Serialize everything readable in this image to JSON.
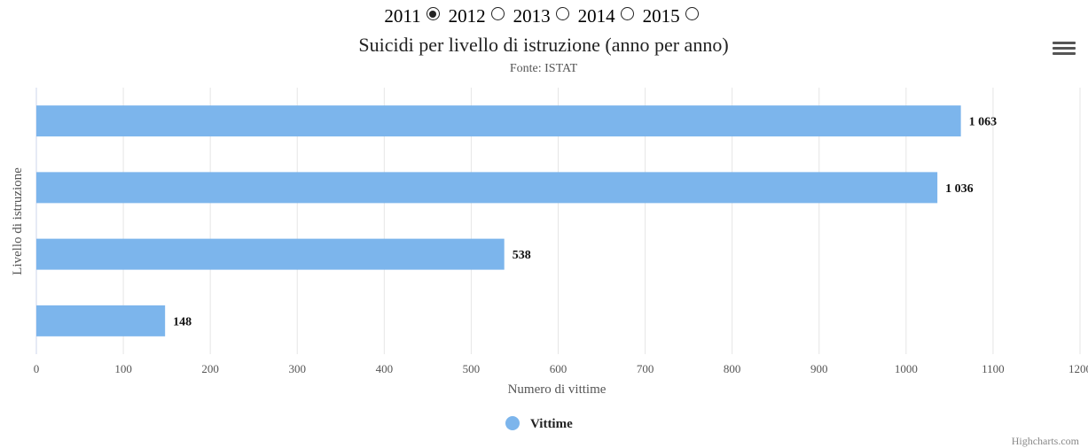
{
  "year_selector": [
    {
      "label": "2011",
      "selected": true
    },
    {
      "label": "2012",
      "selected": false
    },
    {
      "label": "2013",
      "selected": false
    },
    {
      "label": "2014",
      "selected": false
    },
    {
      "label": "2015",
      "selected": false
    }
  ],
  "menu": {
    "icon": "hamburger-menu-icon"
  },
  "credits": "Highcharts.com",
  "colors": {
    "series": "#7cb5ec",
    "grid": "#e6e6e6",
    "axis_line": "#ccd6eb"
  },
  "chart_data": {
    "type": "bar",
    "orientation": "horizontal",
    "title": "Suicidi per livello di istruzione (anno per anno)",
    "subtitle": "Fonte: ISTAT",
    "xlabel": "Numero di vittime",
    "ylabel": "Livello di istruzione",
    "xlim": [
      0,
      1200
    ],
    "ticks": [
      0,
      100,
      200,
      300,
      400,
      500,
      600,
      700,
      800,
      900,
      1000,
      1100,
      1200
    ],
    "categories": [
      "",
      "",
      "",
      ""
    ],
    "series": [
      {
        "name": "Vittime",
        "values": [
          1063,
          1036,
          538,
          148
        ],
        "labels": [
          "1 063",
          "1 036",
          "538",
          "148"
        ]
      }
    ],
    "legend": "bottom-center",
    "grid": true
  }
}
